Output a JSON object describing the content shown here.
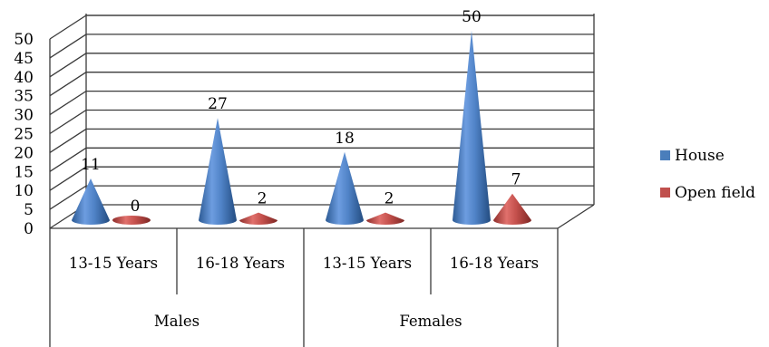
{
  "chart_data": {
    "type": "bar",
    "subtype": "3d-cone",
    "title": "",
    "xlabel": "",
    "ylabel": "",
    "ylim": [
      0,
      50
    ],
    "ytick_step": 5,
    "grid": true,
    "legend_position": "right",
    "groups": [
      {
        "label": "Males",
        "categories": [
          "13-15 Years",
          "16-18 Years"
        ]
      },
      {
        "label": "Females",
        "categories": [
          "13-15 Years",
          "16-18 Years"
        ]
      }
    ],
    "categories": [
      "13-15 Years",
      "16-18 Years",
      "13-15 Years",
      "16-18 Years"
    ],
    "series": [
      {
        "name": "House",
        "color": "#4a7ebb",
        "values": [
          11,
          27,
          18,
          50
        ]
      },
      {
        "name": "Open field",
        "color": "#c0504d",
        "values": [
          0,
          2,
          2,
          7
        ]
      }
    ]
  }
}
